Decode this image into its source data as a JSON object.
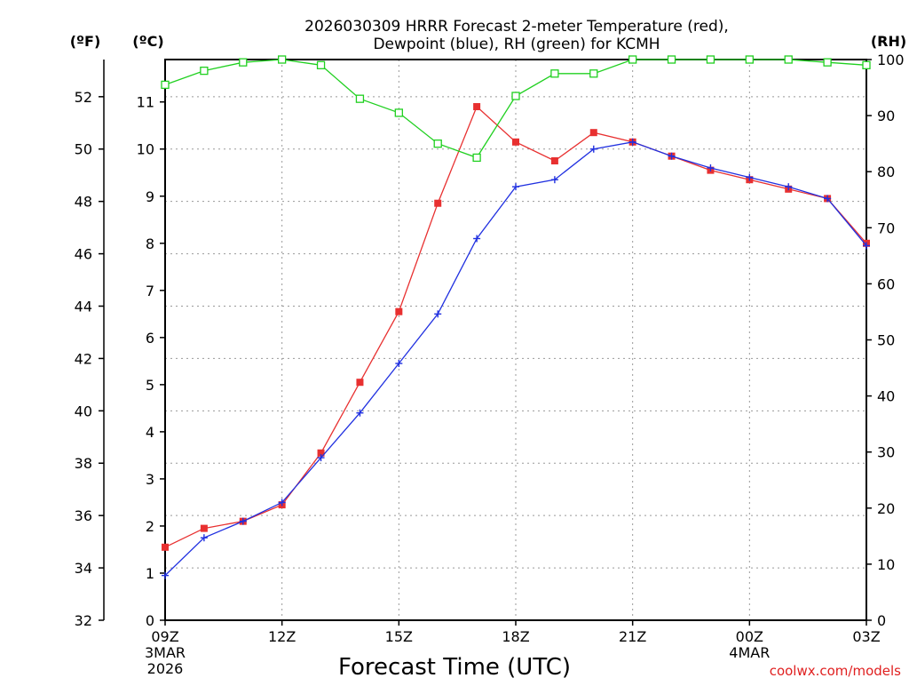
{
  "chart_data": {
    "type": "line",
    "title_line1": "2026030309 HRRR Forecast 2-meter Temperature (red),",
    "title_line2": "Dewpoint (blue), RH (green) for KCMH",
    "xlabel": "Forecast Time (UTC)",
    "credit": "coolwx.com/models",
    "unit_f": "(ºF)",
    "unit_c": "(ºC)",
    "unit_rh": "(RH)",
    "x_hours": [
      9,
      10,
      11,
      12,
      13,
      14,
      15,
      16,
      17,
      18,
      19,
      20,
      21,
      22,
      23,
      24,
      25,
      26,
      27
    ],
    "x_ticks": [
      {
        "hour": 9,
        "label": "09Z",
        "sub1": "3MAR",
        "sub2": "2026"
      },
      {
        "hour": 12,
        "label": "12Z",
        "sub1": "",
        "sub2": ""
      },
      {
        "hour": 15,
        "label": "15Z",
        "sub1": "",
        "sub2": ""
      },
      {
        "hour": 18,
        "label": "18Z",
        "sub1": "",
        "sub2": ""
      },
      {
        "hour": 21,
        "label": "21Z",
        "sub1": "",
        "sub2": ""
      },
      {
        "hour": 24,
        "label": "00Z",
        "sub1": "4MAR",
        "sub2": ""
      },
      {
        "hour": 27,
        "label": "03Z",
        "sub1": "",
        "sub2": ""
      }
    ],
    "xlim": [
      9,
      27
    ],
    "ylim_c": [
      0,
      11.9
    ],
    "ylim_rh": [
      0,
      100
    ],
    "y_ticks_f": [
      "32",
      "34",
      "36",
      "38",
      "40",
      "42",
      "44",
      "46",
      "48",
      "50",
      "52"
    ],
    "y_ticks_c": [
      "0",
      "1",
      "2",
      "3",
      "4",
      "5",
      "6",
      "7",
      "8",
      "9",
      "10",
      "11"
    ],
    "y_ticks_rh": [
      "0",
      "10",
      "20",
      "30",
      "40",
      "50",
      "60",
      "70",
      "80",
      "90",
      "100"
    ],
    "grid": true,
    "series": [
      {
        "name": "Temperature",
        "color": "#e83030",
        "axis": "C",
        "marker": "square-filled",
        "values": [
          1.55,
          1.95,
          2.1,
          2.45,
          3.55,
          5.05,
          6.55,
          8.85,
          10.9,
          10.15,
          9.75,
          10.35,
          10.15,
          9.85,
          9.55,
          9.35,
          9.15,
          8.95,
          8.0
        ]
      },
      {
        "name": "Dewpoint",
        "color": "#2030e0",
        "axis": "C",
        "marker": "plus",
        "values": [
          0.95,
          1.75,
          2.1,
          2.5,
          3.45,
          4.4,
          5.45,
          6.5,
          8.1,
          9.2,
          9.35,
          10.0,
          10.15,
          9.85,
          9.6,
          9.4,
          9.2,
          8.95,
          7.95
        ]
      },
      {
        "name": "RH",
        "color": "#20d020",
        "axis": "RH",
        "marker": "square-open",
        "values": [
          95.5,
          98,
          99.5,
          100,
          99,
          93,
          90.5,
          85,
          82.5,
          93.5,
          97.5,
          97.5,
          100,
          100,
          100,
          100,
          100,
          99.5,
          99
        ]
      }
    ]
  }
}
